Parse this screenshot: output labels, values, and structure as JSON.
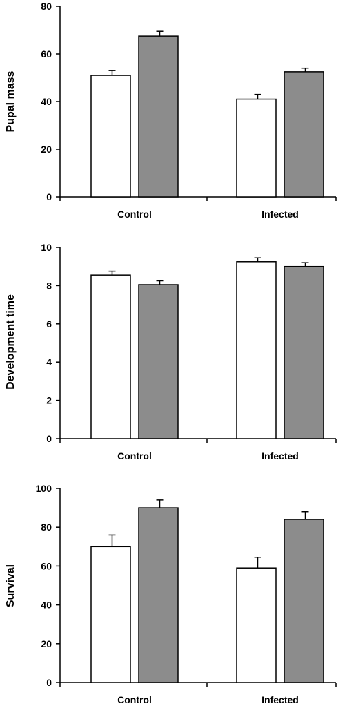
{
  "colors": {
    "series_white": "#ffffff",
    "series_gray": "#8c8c8c",
    "axis": "#000000"
  },
  "chart_data": [
    {
      "type": "bar",
      "ylabel": "Pupal mass",
      "categories": [
        "Control",
        "Infected"
      ],
      "ylim": [
        0,
        80
      ],
      "yticks": [
        0,
        20,
        40,
        60,
        80
      ],
      "series": [
        {
          "fill": "white",
          "values": [
            51,
            41
          ],
          "errors": [
            2,
            2
          ]
        },
        {
          "fill": "gray",
          "values": [
            67.5,
            52.5
          ],
          "errors": [
            2,
            1.5
          ]
        }
      ]
    },
    {
      "type": "bar",
      "ylabel": "Development time",
      "categories": [
        "Control",
        "Infected"
      ],
      "ylim": [
        0,
        10
      ],
      "yticks": [
        0,
        2,
        4,
        6,
        8,
        10
      ],
      "series": [
        {
          "fill": "white",
          "values": [
            8.55,
            9.25
          ],
          "errors": [
            0.2,
            0.2
          ]
        },
        {
          "fill": "gray",
          "values": [
            8.05,
            9.0
          ],
          "errors": [
            0.2,
            0.2
          ]
        }
      ]
    },
    {
      "type": "bar",
      "ylabel": "Survival",
      "categories": [
        "Control",
        "Infected"
      ],
      "ylim": [
        0,
        100
      ],
      "yticks": [
        0,
        20,
        40,
        60,
        80,
        100
      ],
      "series": [
        {
          "fill": "white",
          "values": [
            70,
            59
          ],
          "errors": [
            6,
            5.5
          ]
        },
        {
          "fill": "gray",
          "values": [
            90,
            84
          ],
          "errors": [
            4,
            4
          ]
        }
      ]
    }
  ]
}
